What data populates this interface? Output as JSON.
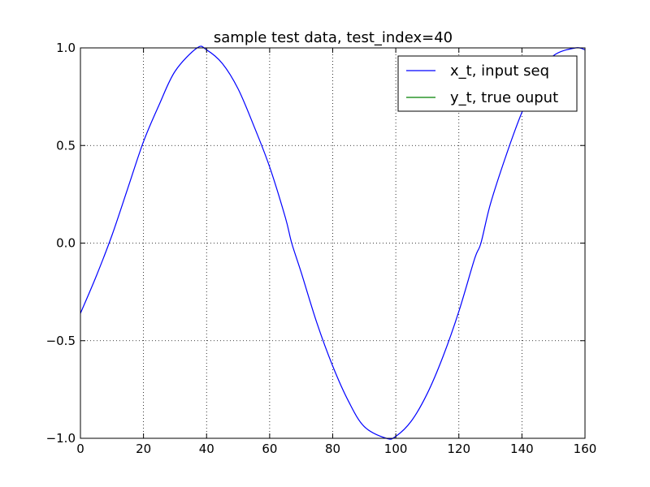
{
  "chart_data": {
    "type": "line",
    "title": "sample test data, test_index=40",
    "xlabel": "",
    "ylabel": "",
    "xlim": [
      0,
      160
    ],
    "ylim": [
      -1.0,
      1.0
    ],
    "xticks": [
      0,
      20,
      40,
      60,
      80,
      100,
      120,
      140,
      160
    ],
    "xtick_labels": [
      "0",
      "20",
      "40",
      "60",
      "80",
      "100",
      "120",
      "140",
      "160"
    ],
    "yticks": [
      1.0,
      0.5,
      0.0,
      -0.5,
      -1.0
    ],
    "ytick_labels": [
      "1.0",
      "0.5",
      "0.0",
      "−0.5",
      "−1.0"
    ],
    "grid": true,
    "legend_position": "top-right",
    "series": [
      {
        "name": "x_t, input seq",
        "color": "#0000ff",
        "x": [
          0,
          5,
          10,
          15,
          20,
          25,
          30,
          37,
          40,
          45,
          50,
          55,
          60,
          65,
          67,
          70,
          75,
          80,
          85,
          90,
          97,
          100,
          105,
          110,
          115,
          120,
          125,
          127,
          130,
          135,
          140,
          145,
          150,
          157,
          160
        ],
        "y": [
          -0.36,
          -0.17,
          0.04,
          0.28,
          0.52,
          0.71,
          0.88,
          1.0,
          0.99,
          0.92,
          0.79,
          0.6,
          0.39,
          0.13,
          0.0,
          -0.15,
          -0.41,
          -0.63,
          -0.81,
          -0.94,
          -1.0,
          -0.99,
          -0.91,
          -0.77,
          -0.58,
          -0.35,
          -0.08,
          0.0,
          0.2,
          0.45,
          0.67,
          0.84,
          0.96,
          1.0,
          0.99
        ]
      },
      {
        "name": "y_t, true ouput",
        "color": "#008000",
        "x": [],
        "y": []
      }
    ]
  }
}
